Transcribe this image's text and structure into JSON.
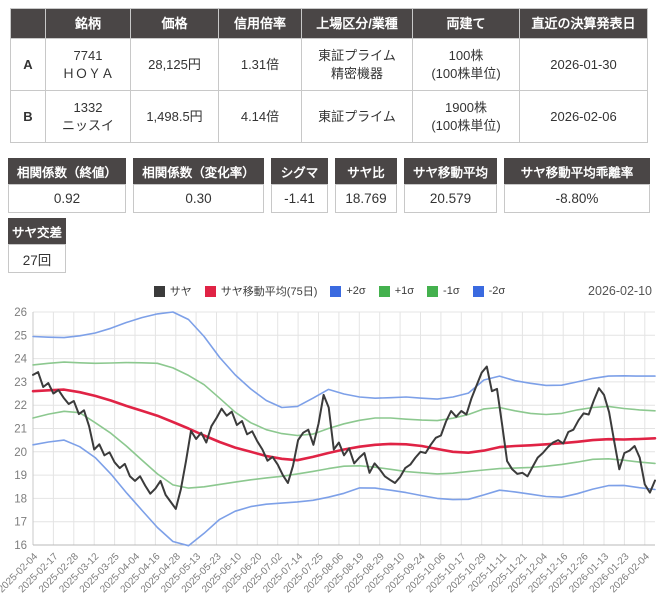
{
  "colors": {
    "table_header_bg": "#4a4646",
    "saya_line": "#3b3b3b",
    "ma_line": "#e02345",
    "sigma2_line": "#7da0e8",
    "sigma1_line": "#8cc88f",
    "sigma2_legend": "#3a6ae0",
    "sigma1_legend": "#44b14e",
    "grid": "#e4e4e4"
  },
  "pair_table": {
    "headers": [
      "",
      "銘柄",
      "価格",
      "信用倍率",
      "上場区分/業種",
      "両建て",
      "直近の決算発表日"
    ],
    "rows": [
      {
        "label": "A",
        "cells": [
          "7741\nＨＯＹＡ",
          "28,125円",
          "1.31倍",
          "東証プライム\n精密機器",
          "100株\n(100株単位)",
          "2026-01-30"
        ]
      },
      {
        "label": "B",
        "cells": [
          "1332\nニッスイ",
          "1,498.5円",
          "4.14倍",
          "東証プライム",
          "1900株\n(100株単位)",
          "2026-02-06"
        ]
      }
    ]
  },
  "stats": {
    "items": [
      {
        "label": "相関係数（終値）",
        "value": "0.92"
      },
      {
        "label": "相関係数（変化率）",
        "value": "0.30"
      },
      {
        "label": "シグマ",
        "value": "-1.41"
      },
      {
        "label": "サヤ比",
        "value": "18.769"
      },
      {
        "label": "サヤ移動平均",
        "value": "20.579"
      },
      {
        "label": "サヤ移動平均乖離率",
        "value": "-8.80%"
      }
    ]
  },
  "saya_cross": {
    "label": "サヤ交差",
    "value": "27回"
  },
  "chart_data": {
    "type": "line",
    "date_label": "2026-02-10",
    "ylim": [
      16,
      26
    ],
    "y_ticks": [
      16,
      17,
      18,
      19,
      20,
      21,
      22,
      23,
      24,
      25,
      26
    ],
    "grid": true,
    "legend_position": "top-center",
    "x_tick_labels": [
      "2025-02-04",
      "2025-02-17",
      "2025-02-28",
      "2025-03-12",
      "2025-03-25",
      "2025-04-04",
      "2025-04-16",
      "2025-04-28",
      "2025-05-13",
      "2025-05-23",
      "2025-06-10",
      "2025-06-20",
      "2025-07-02",
      "2025-07-14",
      "2025-07-25",
      "2025-08-06",
      "2025-08-19",
      "2025-08-29",
      "2025-09-10",
      "2025-09-24",
      "2025-10-06",
      "2025-10-17",
      "2025-10-29",
      "2025-11-11",
      "2025-11-21",
      "2025-12-04",
      "2025-12-16",
      "2025-12-26",
      "2026-01-13",
      "2026-01-23",
      "2026-02-04"
    ],
    "tick_interval_days": 8,
    "total_days": 244,
    "series": [
      {
        "name": "サヤ",
        "color": "#3b3b3b",
        "width": 2,
        "values": [
          23.3,
          23.42,
          22.78,
          22.95,
          22.5,
          22.65,
          22.32,
          22.05,
          22.18,
          21.62,
          21.78,
          21.1,
          20.1,
          20.32,
          19.85,
          19.98,
          19.55,
          19.3,
          19.48,
          18.95,
          18.75,
          18.95,
          18.55,
          18.2,
          18.42,
          18.75,
          18.15,
          17.85,
          17.55,
          18.4,
          19.6,
          20.9,
          20.55,
          20.82,
          20.4,
          21.1,
          21.45,
          21.85,
          21.55,
          21.72,
          21.15,
          21.32,
          20.75,
          20.88,
          20.45,
          20.1,
          19.62,
          19.78,
          19.45,
          19.0,
          18.66,
          19.4,
          20.5,
          20.82,
          20.95,
          20.3,
          21.2,
          22.44,
          21.9,
          20.1,
          20.4,
          19.85,
          20.15,
          19.5,
          19.75,
          19.95,
          19.1,
          19.5,
          19.25,
          18.95,
          18.8,
          18.66,
          18.92,
          19.3,
          19.45,
          19.75,
          20.0,
          19.95,
          20.3,
          20.6,
          20.7,
          21.3,
          21.75,
          21.5,
          21.75,
          21.6,
          22.3,
          22.85,
          23.4,
          23.66,
          22.6,
          22.7,
          21.2,
          19.6,
          19.25,
          19.05,
          19.1,
          18.95,
          19.35,
          19.75,
          19.95,
          20.2,
          20.4,
          20.5,
          20.35,
          20.85,
          20.95,
          21.35,
          21.65,
          21.6,
          22.2,
          22.73,
          22.44,
          21.7,
          20.45,
          19.25,
          19.95,
          20.05,
          20.25,
          19.75,
          18.6,
          18.25,
          18.77
        ]
      },
      {
        "name": "サヤ移動平均(75日)",
        "color": "#e02345",
        "width": 2.6,
        "values": [
          22.6,
          22.64,
          22.67,
          22.56,
          22.4,
          22.2,
          21.97,
          21.76,
          21.55,
          21.28,
          21.0,
          20.7,
          20.42,
          20.18,
          20.0,
          19.82,
          19.7,
          19.64,
          19.78,
          19.95,
          20.1,
          20.22,
          20.3,
          20.34,
          20.32,
          20.25,
          20.12,
          20.0,
          19.96,
          20.05,
          20.2,
          20.25,
          20.28,
          20.32,
          20.37,
          20.43,
          20.5,
          20.54,
          20.53,
          20.55,
          20.58
        ]
      },
      {
        "name": "+2σ",
        "color": "#7da0e8",
        "legend_color": "#3a6ae0",
        "width": 1.6,
        "values": [
          24.95,
          24.92,
          24.9,
          24.98,
          25.1,
          25.3,
          25.55,
          25.76,
          25.92,
          26.0,
          25.68,
          24.95,
          24.05,
          23.3,
          22.7,
          22.2,
          21.9,
          21.95,
          22.3,
          22.68,
          22.48,
          22.35,
          22.3,
          22.32,
          22.35,
          22.3,
          22.26,
          22.35,
          22.52,
          23.08,
          23.25,
          23.05,
          22.94,
          22.85,
          22.86,
          23.0,
          23.15,
          23.25,
          23.26,
          23.25,
          23.25
        ]
      },
      {
        "name": "+1σ",
        "color": "#8cc88f",
        "legend_color": "#44b14e",
        "width": 1.6,
        "values": [
          23.73,
          23.8,
          23.85,
          23.82,
          23.8,
          23.81,
          23.83,
          23.82,
          23.8,
          23.6,
          23.28,
          22.88,
          22.3,
          21.7,
          21.25,
          20.95,
          20.78,
          20.7,
          20.76,
          21.0,
          21.2,
          21.35,
          21.45,
          21.45,
          21.4,
          21.36,
          21.34,
          21.44,
          21.6,
          21.84,
          21.9,
          21.76,
          21.65,
          21.6,
          21.65,
          21.8,
          21.9,
          21.95,
          21.86,
          21.8,
          21.76
        ]
      },
      {
        "name": "-1σ",
        "color": "#8cc88f",
        "legend_color": "#44b14e",
        "width": 1.6,
        "values": [
          21.45,
          21.62,
          21.74,
          21.68,
          21.25,
          20.8,
          20.25,
          19.65,
          19.05,
          18.58,
          18.44,
          18.5,
          18.6,
          18.7,
          18.8,
          18.88,
          18.95,
          19.05,
          19.16,
          19.28,
          19.38,
          19.4,
          19.34,
          19.25,
          19.15,
          19.1,
          19.05,
          19.08,
          19.15,
          19.22,
          19.28,
          19.3,
          19.33,
          19.38,
          19.46,
          19.56,
          19.68,
          19.7,
          19.64,
          19.56,
          19.5
        ]
      },
      {
        "name": "-2σ",
        "color": "#7da0e8",
        "legend_color": "#3a6ae0",
        "width": 1.6,
        "values": [
          20.3,
          20.42,
          20.5,
          20.22,
          19.75,
          19.05,
          18.25,
          17.5,
          16.75,
          16.15,
          15.97,
          16.5,
          17.1,
          17.45,
          17.65,
          17.75,
          17.8,
          17.85,
          17.92,
          18.05,
          18.22,
          18.45,
          18.44,
          18.35,
          18.25,
          18.12,
          18.0,
          17.95,
          17.96,
          18.15,
          18.35,
          18.28,
          18.18,
          18.08,
          18.05,
          18.2,
          18.4,
          18.55,
          18.56,
          18.46,
          18.38
        ]
      }
    ]
  }
}
